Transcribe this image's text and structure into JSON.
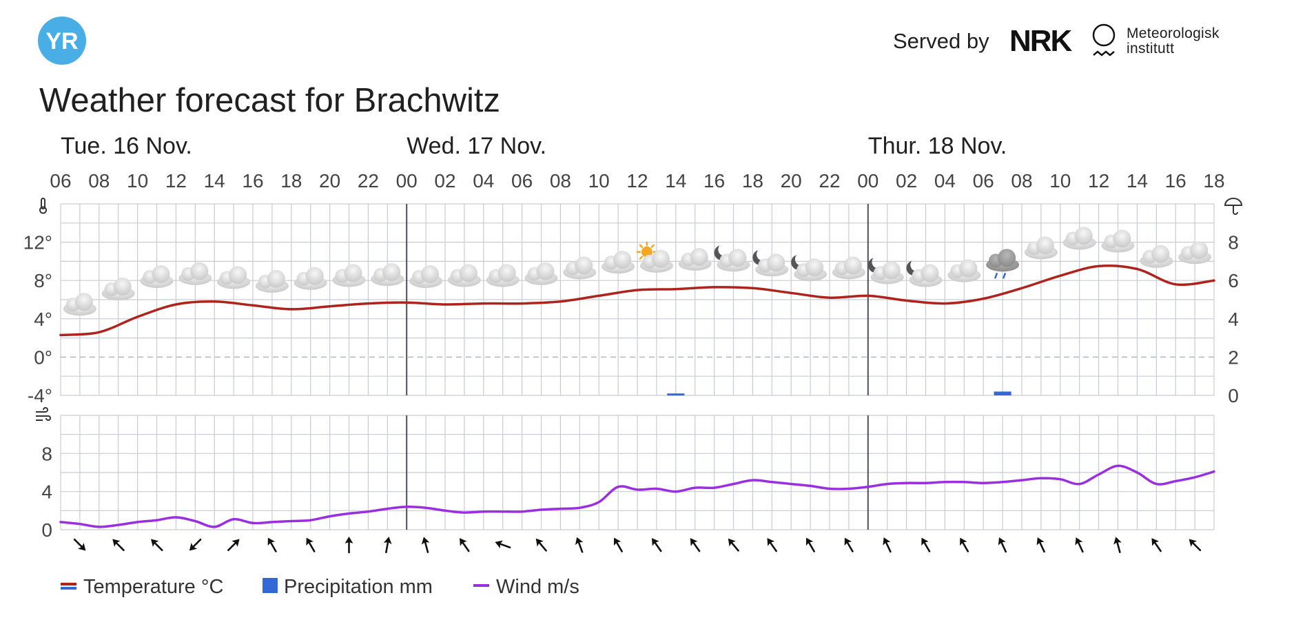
{
  "header": {
    "logo_text": "YR",
    "served_by": "Served by",
    "nrk_logo_text": "NRK",
    "met_line1": "Meteorologisk",
    "met_line2": "institutt",
    "title": "Weather forecast for Brachwitz"
  },
  "days": [
    {
      "label": "Tue. 16 Nov.",
      "start_hour_index": 0
    },
    {
      "label": "Wed. 17 Nov.",
      "start_hour_index": 18
    },
    {
      "label": "Thur. 18 Nov.",
      "start_hour_index": 42
    }
  ],
  "legend": {
    "temperature": "Temperature °C",
    "precipitation": "Precipitation mm",
    "wind": "Wind m/s"
  },
  "colors": {
    "temperature": "#b0231c",
    "precipitation": "#3369d6",
    "wind": "#9b2ee0",
    "grid": "#c7ccd3",
    "logo": "#4aaee6"
  },
  "chart_data": {
    "type": "line",
    "x_ticks": [
      "06",
      "08",
      "10",
      "12",
      "14",
      "16",
      "18",
      "20",
      "22",
      "00",
      "02",
      "04",
      "06",
      "08",
      "10",
      "12",
      "14",
      "16",
      "18",
      "20",
      "22",
      "00",
      "02",
      "04",
      "06",
      "08",
      "10",
      "12",
      "14",
      "16",
      "18"
    ],
    "temperature": {
      "ylabel_unit": "°",
      "y_ticks": [
        -4,
        0,
        4,
        8,
        12
      ],
      "ylim": [
        -4,
        16
      ],
      "x_hours": [
        0,
        2,
        4,
        6,
        8,
        10,
        12,
        14,
        16,
        18,
        20,
        22,
        24,
        26,
        28,
        30,
        32,
        34,
        36,
        38,
        40,
        42,
        44,
        46,
        48,
        50,
        52,
        54,
        56,
        58,
        60
      ],
      "values": [
        2.3,
        2.6,
        4.2,
        5.5,
        5.8,
        5.4,
        5.0,
        5.3,
        5.6,
        5.7,
        5.5,
        5.6,
        5.6,
        5.8,
        6.4,
        7.0,
        7.1,
        7.3,
        7.2,
        6.7,
        6.2,
        6.4,
        5.9,
        5.6,
        6.1,
        7.2,
        8.5,
        9.5,
        9.2,
        7.6,
        8.0
      ]
    },
    "precipitation": {
      "y_ticks": [
        0,
        2,
        4,
        6,
        8
      ],
      "ylim": [
        0,
        10
      ],
      "bars": [
        {
          "hour": 32,
          "value": 0.1
        },
        {
          "hour": 49,
          "value": 0.2
        }
      ]
    },
    "wind": {
      "y_ticks": [
        0,
        4,
        8
      ],
      "ylim": [
        0,
        12
      ],
      "x_hours": [
        0,
        1,
        2,
        3,
        4,
        5,
        6,
        7,
        8,
        9,
        10,
        11,
        12,
        13,
        14,
        15,
        16,
        17,
        18,
        19,
        20,
        21,
        22,
        23,
        24,
        25,
        26,
        27,
        28,
        29,
        30,
        31,
        32,
        33,
        34,
        35,
        36,
        37,
        38,
        39,
        40,
        41,
        42,
        43,
        44,
        45,
        46,
        47,
        48,
        49,
        50,
        51,
        52,
        53,
        54,
        55,
        56,
        57,
        58,
        59,
        60
      ],
      "values": [
        0.8,
        0.6,
        0.3,
        0.5,
        0.8,
        1.0,
        1.3,
        0.9,
        0.3,
        1.1,
        0.7,
        0.8,
        0.9,
        1.0,
        1.4,
        1.7,
        1.9,
        2.2,
        2.4,
        2.3,
        2.0,
        1.8,
        1.9,
        1.9,
        1.9,
        2.1,
        2.2,
        2.3,
        2.9,
        4.5,
        4.2,
        4.3,
        4.0,
        4.4,
        4.4,
        4.8,
        5.2,
        5.0,
        4.8,
        4.6,
        4.3,
        4.3,
        4.5,
        4.8,
        4.9,
        4.9,
        5.0,
        5.0,
        4.9,
        5.0,
        5.2,
        5.4,
        5.3,
        4.8,
        5.8,
        6.7,
        6.0,
        4.8,
        5.1,
        5.5,
        6.1
      ]
    },
    "wind_direction_deg": [
      45,
      225,
      225,
      135,
      315,
      240,
      240,
      270,
      280,
      255,
      235,
      200,
      230,
      250,
      240,
      235,
      235,
      230,
      235,
      240,
      240,
      245,
      240,
      240,
      245,
      245,
      245,
      255,
      235,
      225
    ],
    "weather_icons": [
      {
        "hour": 1,
        "icon": "cloudy-icon"
      },
      {
        "hour": 3,
        "icon": "cloudy-icon"
      },
      {
        "hour": 5,
        "icon": "cloudy-icon"
      },
      {
        "hour": 7,
        "icon": "cloudy-icon"
      },
      {
        "hour": 9,
        "icon": "cloudy-icon"
      },
      {
        "hour": 11,
        "icon": "cloudy-icon"
      },
      {
        "hour": 13,
        "icon": "cloudy-icon"
      },
      {
        "hour": 15,
        "icon": "cloudy-icon"
      },
      {
        "hour": 17,
        "icon": "cloudy-icon"
      },
      {
        "hour": 19,
        "icon": "cloudy-icon"
      },
      {
        "hour": 21,
        "icon": "cloudy-icon"
      },
      {
        "hour": 23,
        "icon": "cloudy-icon"
      },
      {
        "hour": 25,
        "icon": "cloudy-icon"
      },
      {
        "hour": 27,
        "icon": "cloudy-icon"
      },
      {
        "hour": 29,
        "icon": "cloudy-icon"
      },
      {
        "hour": 31,
        "icon": "partly-sunny-icon"
      },
      {
        "hour": 33,
        "icon": "cloudy-icon"
      },
      {
        "hour": 35,
        "icon": "cloudy-night-icon"
      },
      {
        "hour": 37,
        "icon": "cloudy-night-icon"
      },
      {
        "hour": 39,
        "icon": "cloudy-night-icon"
      },
      {
        "hour": 41,
        "icon": "cloudy-icon"
      },
      {
        "hour": 43,
        "icon": "cloudy-night-icon"
      },
      {
        "hour": 45,
        "icon": "cloudy-night-icon"
      },
      {
        "hour": 47,
        "icon": "cloudy-icon"
      },
      {
        "hour": 49,
        "icon": "dark-cloud-drizzle-icon"
      },
      {
        "hour": 51,
        "icon": "cloudy-icon"
      },
      {
        "hour": 53,
        "icon": "cloudy-icon"
      },
      {
        "hour": 55,
        "icon": "cloudy-icon"
      },
      {
        "hour": 57,
        "icon": "cloudy-icon"
      },
      {
        "hour": 59,
        "icon": "cloudy-icon"
      }
    ],
    "grid": true,
    "legend_placement": "bottom-left"
  }
}
